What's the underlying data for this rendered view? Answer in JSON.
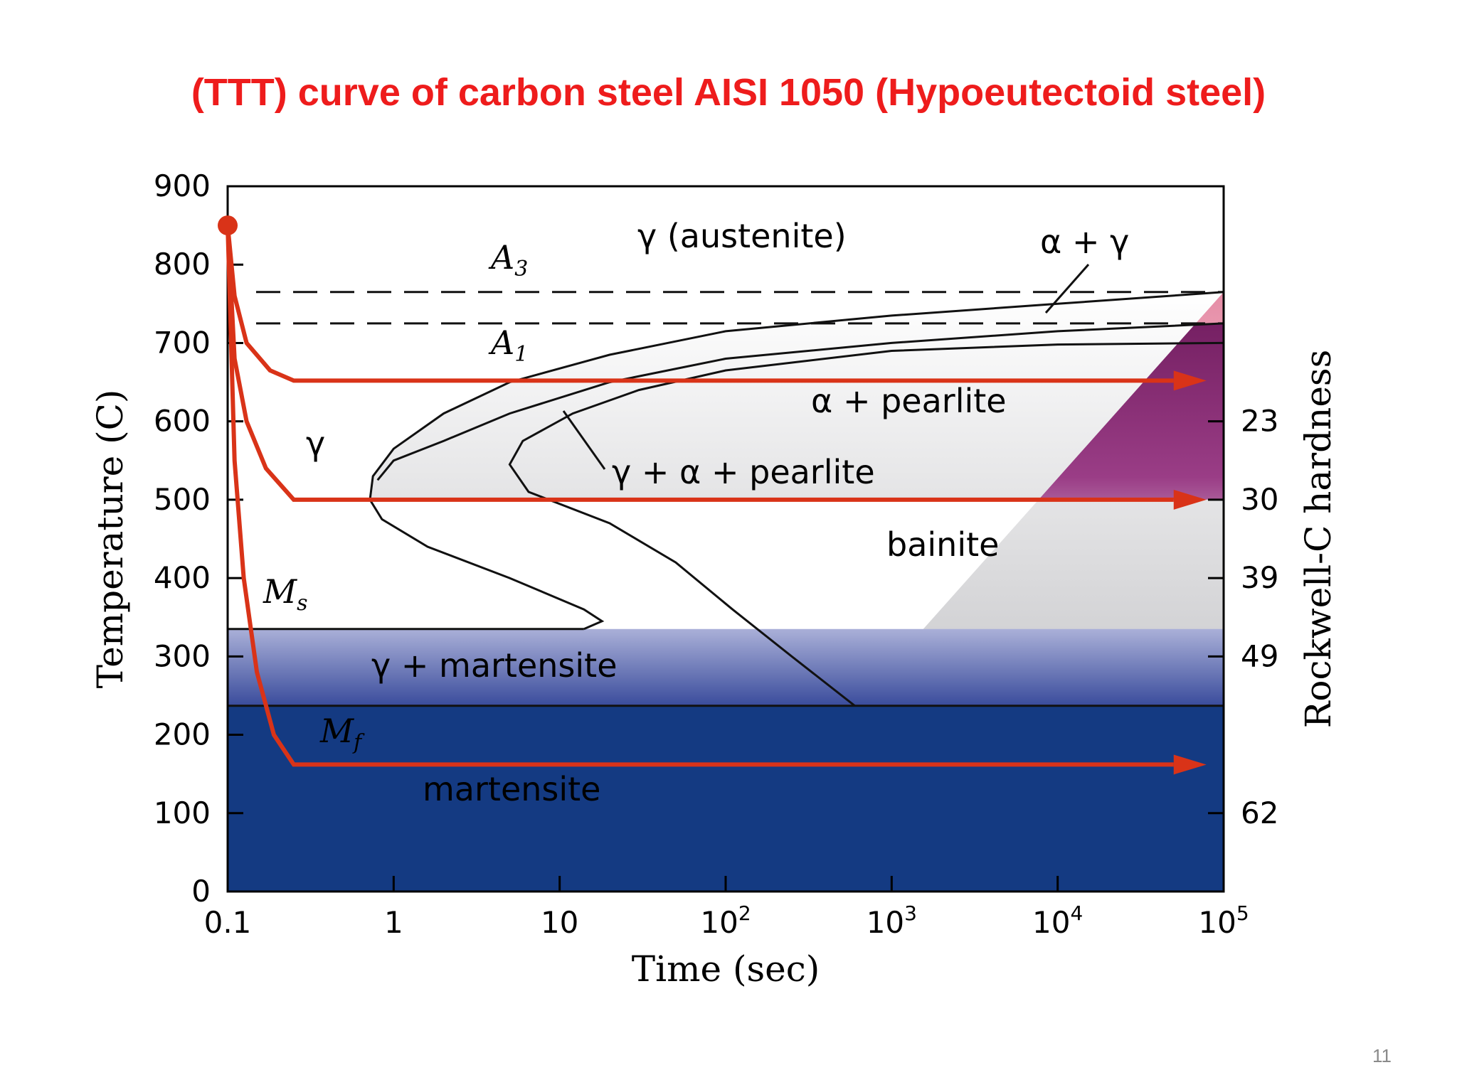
{
  "slide": {
    "title": "(TTT) curve of carbon steel AISI 1050 (Hypoeutectoid steel)",
    "page_number": "11"
  },
  "colors": {
    "title": "#ee1c1c",
    "cooling_path": "#d93318",
    "martensite": "#143a82",
    "gamma_martensite": "#4655a0",
    "pearlite_dark": "#7d2468",
    "pearlite_light": "#f0b6c6",
    "bainite_light": "#efefef"
  },
  "chart_data": {
    "type": "line",
    "title": "",
    "xlabel": "Time (sec)",
    "ylabel": "Temperature (C)",
    "y2label": "Rockwell-C hardness",
    "x_scale": "log",
    "xlim": [
      0.1,
      100000
    ],
    "ylim": [
      0,
      900
    ],
    "x_ticks": [
      {
        "value": 0.1,
        "base": "0.1",
        "exp": ""
      },
      {
        "value": 1,
        "base": "1",
        "exp": ""
      },
      {
        "value": 10,
        "base": "10",
        "exp": ""
      },
      {
        "value": 100,
        "base": "10",
        "exp": "2"
      },
      {
        "value": 1000,
        "base": "10",
        "exp": "3"
      },
      {
        "value": 10000,
        "base": "10",
        "exp": "4"
      },
      {
        "value": 100000,
        "base": "10",
        "exp": "5"
      }
    ],
    "y_ticks": [
      {
        "value": 0,
        "label": "0"
      },
      {
        "value": 100,
        "label": "100"
      },
      {
        "value": 200,
        "label": "200"
      },
      {
        "value": 300,
        "label": "300"
      },
      {
        "value": 400,
        "label": "400"
      },
      {
        "value": 500,
        "label": "500"
      },
      {
        "value": 600,
        "label": "600"
      },
      {
        "value": 700,
        "label": "700"
      },
      {
        "value": 800,
        "label": "800"
      },
      {
        "value": 900,
        "label": "900"
      }
    ],
    "hardness_ticks": [
      {
        "temp": 600,
        "label": "23"
      },
      {
        "temp": 500,
        "label": "30"
      },
      {
        "temp": 400,
        "label": "39"
      },
      {
        "temp": 300,
        "label": "49"
      },
      {
        "temp": 100,
        "label": "62"
      }
    ],
    "reference_lines": [
      {
        "name": "A3",
        "temp": 765
      },
      {
        "name": "A1",
        "temp": 725
      },
      {
        "name": "Ms",
        "temp": 335
      },
      {
        "name": "Mf",
        "temp": 237
      }
    ],
    "boundaries": {
      "start_curve": [
        {
          "t": 100000,
          "T": 765
        },
        {
          "t": 10000,
          "T": 750
        },
        {
          "t": 1000,
          "T": 735
        },
        {
          "t": 100,
          "T": 715
        },
        {
          "t": 20,
          "T": 685
        },
        {
          "t": 5,
          "T": 650
        },
        {
          "t": 2,
          "T": 610
        },
        {
          "t": 1,
          "T": 565
        },
        {
          "t": 0.75,
          "T": 530
        },
        {
          "t": 0.72,
          "T": 500
        },
        {
          "t": 0.85,
          "T": 475
        },
        {
          "t": 1.6,
          "T": 440
        },
        {
          "t": 5,
          "T": 400
        },
        {
          "t": 14,
          "T": 360
        },
        {
          "t": 18,
          "T": 345
        },
        {
          "t": 14,
          "T": 335
        }
      ],
      "finish_curve": [
        {
          "t": 100000,
          "T": 700
        },
        {
          "t": 10000,
          "T": 698
        },
        {
          "t": 1000,
          "T": 690
        },
        {
          "t": 100,
          "T": 665
        },
        {
          "t": 30,
          "T": 640
        },
        {
          "t": 12,
          "T": 610
        },
        {
          "t": 6,
          "T": 575
        },
        {
          "t": 5,
          "T": 545
        },
        {
          "t": 6.5,
          "T": 510
        },
        {
          "t": 20,
          "T": 470
        },
        {
          "t": 50,
          "T": 420
        },
        {
          "t": 110,
          "T": 360
        },
        {
          "t": 250,
          "T": 300
        },
        {
          "t": 600,
          "T": 237
        }
      ],
      "ferrite_start_curve": [
        {
          "t": 100000,
          "T": 725
        },
        {
          "t": 10000,
          "T": 715
        },
        {
          "t": 1000,
          "T": 700
        },
        {
          "t": 100,
          "T": 680
        },
        {
          "t": 20,
          "T": 650
        },
        {
          "t": 5,
          "T": 610
        },
        {
          "t": 2,
          "T": 575
        },
        {
          "t": 1,
          "T": 550
        },
        {
          "t": 0.8,
          "T": 525
        }
      ]
    },
    "cooling_paths": [
      {
        "points": [
          {
            "t": 0.1,
            "T": 850
          },
          {
            "t": 0.11,
            "T": 760
          },
          {
            "t": 0.13,
            "T": 700
          },
          {
            "t": 0.18,
            "T": 665
          },
          {
            "t": 0.25,
            "T": 652
          },
          {
            "t": 50000,
            "T": 652
          }
        ]
      },
      {
        "points": [
          {
            "t": 0.1,
            "T": 850
          },
          {
            "t": 0.11,
            "T": 680
          },
          {
            "t": 0.13,
            "T": 600
          },
          {
            "t": 0.17,
            "T": 540
          },
          {
            "t": 0.25,
            "T": 500
          },
          {
            "t": 50000,
            "T": 500
          }
        ]
      },
      {
        "points": [
          {
            "t": 0.1,
            "T": 850
          },
          {
            "t": 0.105,
            "T": 700
          },
          {
            "t": 0.11,
            "T": 550
          },
          {
            "t": 0.125,
            "T": 400
          },
          {
            "t": 0.15,
            "T": 280
          },
          {
            "t": 0.19,
            "T": 200
          },
          {
            "t": 0.25,
            "T": 162
          },
          {
            "t": 50000,
            "T": 162
          }
        ]
      }
    ],
    "start_point": {
      "t": 0.1,
      "T": 850
    },
    "region_labels": {
      "austenite": "γ (austenite)",
      "alpha_gamma": "α + γ",
      "gamma": "γ",
      "alpha_pearlite": "α + pearlite",
      "gamma_alpha_pearlite": "γ + α + pearlite",
      "bainite": "bainite",
      "gamma_martensite": "γ + martensite",
      "martensite": "martensite"
    },
    "line_labels": {
      "A3": {
        "main": "A",
        "sub": "3"
      },
      "A1": {
        "main": "A",
        "sub": "1"
      },
      "Ms": {
        "main": "M",
        "sub": "s"
      },
      "Mf": {
        "main": "M",
        "sub": "f"
      }
    }
  }
}
